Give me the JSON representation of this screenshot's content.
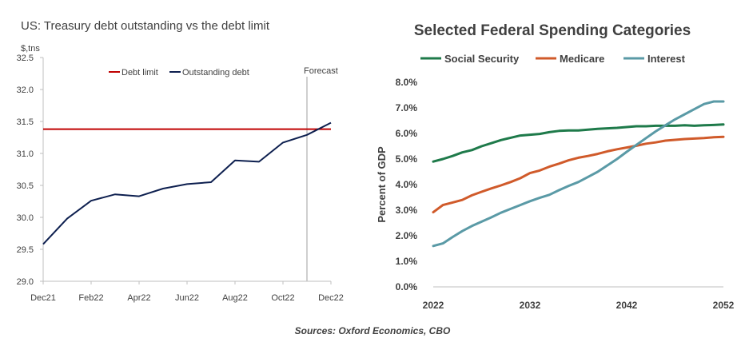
{
  "chart_data": [
    {
      "type": "line",
      "title": "US: Treasury debt outstanding vs the debt limit",
      "ylabel": "$,tns",
      "ylim": [
        29.0,
        32.5
      ],
      "yticks": [
        "32.5",
        "32.0",
        "31.5",
        "31.0",
        "30.5",
        "30.0",
        "29.5",
        "29.0"
      ],
      "x": [
        "Dec21",
        "Jan22",
        "Feb22",
        "Mar22",
        "Apr22",
        "May22",
        "Jun22",
        "Jul22",
        "Aug22",
        "Sep22",
        "Oct22",
        "Nov22",
        "Dec22"
      ],
      "xtick_labels": [
        "Dec21",
        "Feb22",
        "Apr22",
        "Jun22",
        "Aug22",
        "Oct22",
        "Dec22"
      ],
      "forecast_label": "Forecast",
      "series": [
        {
          "name": "Debt limit",
          "color": "#c00000",
          "values": [
            31.38,
            31.38,
            31.38,
            31.38,
            31.38,
            31.38,
            31.38,
            31.38,
            31.38,
            31.38,
            31.38,
            31.38,
            31.38
          ]
        },
        {
          "name": "Outstanding debt",
          "color": "#0d1f4f",
          "values": [
            29.58,
            29.98,
            30.26,
            30.36,
            30.33,
            30.45,
            30.52,
            30.55,
            30.89,
            30.87,
            31.17,
            31.29,
            31.48
          ]
        }
      ]
    },
    {
      "type": "line",
      "title": "Selected Federal Spending Categories",
      "ylabel": "Percent of GDP",
      "ylim": [
        0,
        8
      ],
      "yticks": [
        "8.0%",
        "7.0%",
        "6.0%",
        "5.0%",
        "4.0%",
        "3.0%",
        "2.0%",
        "1.0%",
        "0.0%"
      ],
      "xtick_labels": [
        "2022",
        "2032",
        "2042",
        "2052"
      ],
      "x": [
        2022,
        2023,
        2024,
        2025,
        2026,
        2027,
        2028,
        2029,
        2030,
        2031,
        2032,
        2033,
        2034,
        2035,
        2036,
        2037,
        2038,
        2039,
        2040,
        2041,
        2042,
        2043,
        2044,
        2045,
        2046,
        2047,
        2048,
        2049,
        2050,
        2051,
        2052
      ],
      "series": [
        {
          "name": "Social Security",
          "color": "#1e7a4a",
          "values": [
            4.9,
            5.0,
            5.12,
            5.26,
            5.35,
            5.5,
            5.62,
            5.74,
            5.83,
            5.92,
            5.95,
            5.98,
            6.05,
            6.1,
            6.12,
            6.12,
            6.15,
            6.18,
            6.2,
            6.22,
            6.25,
            6.28,
            6.28,
            6.3,
            6.3,
            6.3,
            6.32,
            6.3,
            6.32,
            6.33,
            6.35
          ]
        },
        {
          "name": "Medicare",
          "color": "#d05a2a",
          "values": [
            2.92,
            3.2,
            3.3,
            3.4,
            3.58,
            3.72,
            3.85,
            3.97,
            4.1,
            4.25,
            4.45,
            4.55,
            4.7,
            4.82,
            4.95,
            5.05,
            5.12,
            5.2,
            5.3,
            5.38,
            5.45,
            5.52,
            5.6,
            5.65,
            5.72,
            5.75,
            5.78,
            5.8,
            5.82,
            5.85,
            5.87
          ]
        },
        {
          "name": "Interest",
          "color": "#5a9aa6",
          "values": [
            1.6,
            1.7,
            1.95,
            2.18,
            2.38,
            2.55,
            2.72,
            2.9,
            3.05,
            3.2,
            3.35,
            3.48,
            3.6,
            3.78,
            3.95,
            4.1,
            4.3,
            4.5,
            4.75,
            5.0,
            5.28,
            5.55,
            5.82,
            6.08,
            6.32,
            6.55,
            6.75,
            6.95,
            7.15,
            7.25,
            7.25
          ]
        }
      ]
    }
  ],
  "sources": "Sources: Oxford Economics, CBO"
}
